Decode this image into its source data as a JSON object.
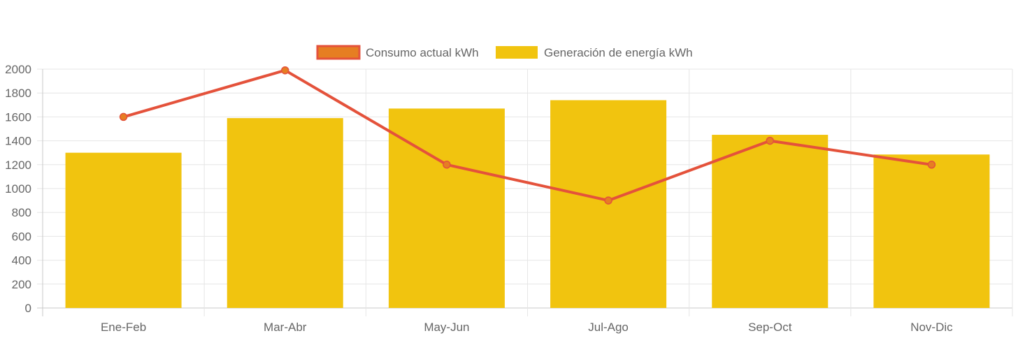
{
  "chart_data": {
    "type": "bar",
    "categories": [
      "Ene-Feb",
      "Mar-Abr",
      "May-Jun",
      "Jul-Ago",
      "Sep-Oct",
      "Nov-Dic"
    ],
    "series": [
      {
        "name": "Consumo actual kWh",
        "type": "line",
        "values": [
          1600,
          1990,
          1200,
          900,
          1400,
          1200
        ],
        "color": "#e4523b",
        "point_color": "#e67e22"
      },
      {
        "name": "Generación de energía kWh",
        "type": "bar",
        "values": [
          1300,
          1590,
          1670,
          1740,
          1450,
          1285
        ],
        "color": "#f1c40f"
      }
    ],
    "ylim": [
      0,
      2000
    ],
    "yticks": [
      0,
      200,
      400,
      600,
      800,
      1000,
      1200,
      1400,
      1600,
      1800,
      2000
    ],
    "grid": true,
    "legend_position": "top"
  }
}
